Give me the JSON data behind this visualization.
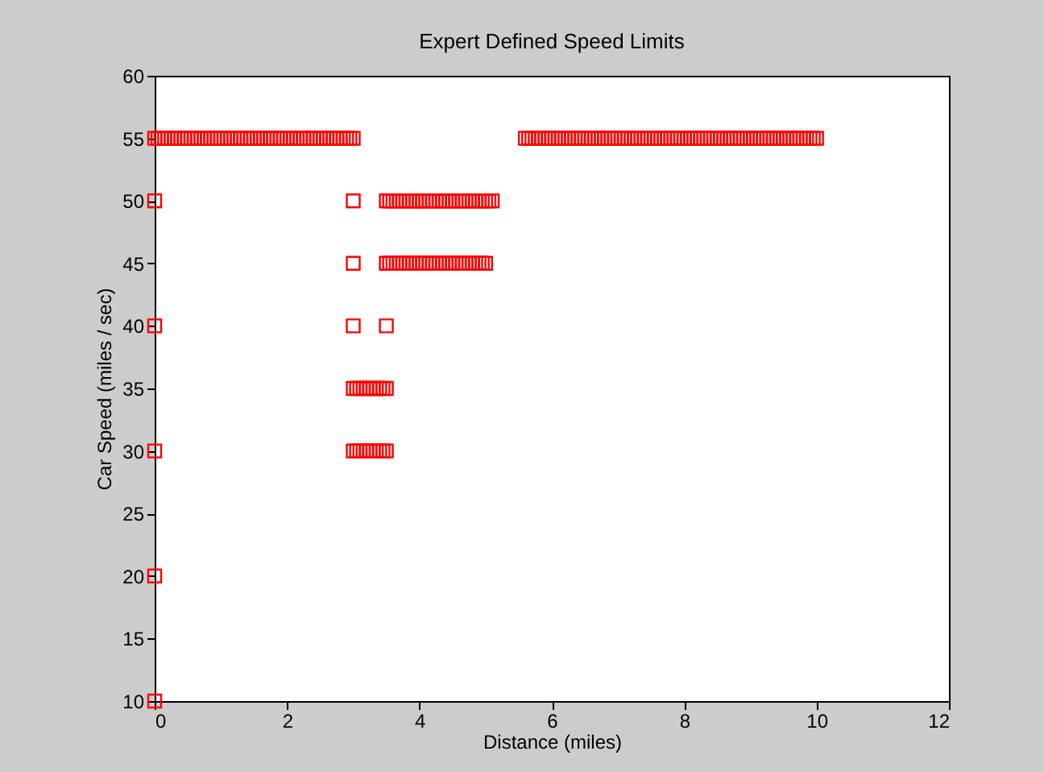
{
  "chart_data": {
    "type": "scatter",
    "title": "Expert Defined Speed Limits",
    "xlabel": "Distance (miles)",
    "ylabel": "Car Speed (miles / sec)",
    "xlim": [
      0,
      12
    ],
    "xticks": [
      0,
      2,
      4,
      6,
      8,
      10,
      12
    ],
    "ylim": [
      10,
      60
    ],
    "yticks": [
      10,
      15,
      20,
      25,
      30,
      35,
      40,
      45,
      50,
      55,
      60
    ],
    "grid": false,
    "legend": false,
    "marker": "square",
    "series": [
      {
        "color": "#ff0000",
        "x": [
          0,
          0.05,
          0.1,
          0.15,
          0.2,
          0.25,
          0.3,
          0.35,
          0.4,
          0.45,
          0.5,
          0.55,
          0.6,
          0.65,
          0.7,
          0.75,
          0.8,
          0.85,
          0.9,
          0.95,
          1,
          1.05,
          1.1,
          1.15,
          1.2,
          1.25,
          1.3,
          1.35,
          1.4,
          1.45,
          1.5,
          1.55,
          1.6,
          1.65,
          1.7,
          1.75,
          1.8,
          1.85,
          1.9,
          1.95,
          2,
          2.05,
          2.1,
          2.15,
          2.2,
          2.25,
          2.3,
          2.35,
          2.4,
          2.45,
          2.5,
          2.55,
          2.6,
          2.65,
          2.7,
          2.75,
          2.8,
          2.85,
          2.9,
          2.95,
          3,
          5.6,
          5.65,
          5.7,
          5.75,
          5.8,
          5.85,
          5.9,
          5.95,
          6,
          6.05,
          6.1,
          6.15,
          6.2,
          6.25,
          6.3,
          6.35,
          6.4,
          6.45,
          6.5,
          6.55,
          6.6,
          6.65,
          6.7,
          6.75,
          6.8,
          6.85,
          6.9,
          6.95,
          7,
          7.05,
          7.1,
          7.15,
          7.2,
          7.25,
          7.3,
          7.35,
          7.4,
          7.45,
          7.5,
          7.55,
          7.6,
          7.65,
          7.7,
          7.75,
          7.8,
          7.85,
          7.9,
          7.95,
          8,
          8.05,
          8.1,
          8.15,
          8.2,
          8.25,
          8.3,
          8.35,
          8.4,
          8.45,
          8.5,
          8.55,
          8.6,
          8.65,
          8.7,
          8.75,
          8.8,
          8.85,
          8.9,
          8.95,
          9,
          9.05,
          9.1,
          9.15,
          9.2,
          9.25,
          9.3,
          9.35,
          9.4,
          9.45,
          9.5,
          9.55,
          9.6,
          9.65,
          9.7,
          9.75,
          9.8,
          9.85,
          9.9,
          9.95,
          10,
          0,
          3,
          3.5,
          3.55,
          3.6,
          3.65,
          3.7,
          3.75,
          3.8,
          3.85,
          3.9,
          3.95,
          4,
          4.05,
          4.1,
          4.15,
          4.2,
          4.25,
          4.3,
          4.35,
          4.4,
          4.45,
          4.5,
          4.55,
          4.6,
          4.65,
          4.7,
          4.75,
          4.8,
          4.85,
          4.9,
          4.95,
          5,
          5.05,
          5.1,
          3,
          3.5,
          3.55,
          3.6,
          3.65,
          3.7,
          3.75,
          3.8,
          3.85,
          3.9,
          3.95,
          4,
          4.05,
          4.1,
          4.15,
          4.2,
          4.25,
          4.3,
          4.35,
          4.4,
          4.45,
          4.5,
          4.55,
          4.6,
          4.65,
          4.7,
          4.75,
          4.8,
          4.85,
          4.9,
          4.95,
          5,
          0,
          3,
          3.5,
          3,
          3.05,
          3.1,
          3.15,
          3.2,
          3.25,
          3.3,
          3.35,
          3.4,
          3.45,
          3.5,
          0,
          3,
          3.05,
          3.1,
          3.15,
          3.2,
          3.25,
          3.3,
          3.35,
          3.4,
          3.45,
          3.5,
          0,
          0
        ],
        "values": [
          55,
          55,
          55,
          55,
          55,
          55,
          55,
          55,
          55,
          55,
          55,
          55,
          55,
          55,
          55,
          55,
          55,
          55,
          55,
          55,
          55,
          55,
          55,
          55,
          55,
          55,
          55,
          55,
          55,
          55,
          55,
          55,
          55,
          55,
          55,
          55,
          55,
          55,
          55,
          55,
          55,
          55,
          55,
          55,
          55,
          55,
          55,
          55,
          55,
          55,
          55,
          55,
          55,
          55,
          55,
          55,
          55,
          55,
          55,
          55,
          55,
          55,
          55,
          55,
          55,
          55,
          55,
          55,
          55,
          55,
          55,
          55,
          55,
          55,
          55,
          55,
          55,
          55,
          55,
          55,
          55,
          55,
          55,
          55,
          55,
          55,
          55,
          55,
          55,
          55,
          55,
          55,
          55,
          55,
          55,
          55,
          55,
          55,
          55,
          55,
          55,
          55,
          55,
          55,
          55,
          55,
          55,
          55,
          55,
          55,
          55,
          55,
          55,
          55,
          55,
          55,
          55,
          55,
          55,
          55,
          55,
          55,
          55,
          55,
          55,
          55,
          55,
          55,
          55,
          55,
          55,
          55,
          55,
          55,
          55,
          55,
          55,
          55,
          55,
          55,
          55,
          55,
          55,
          55,
          55,
          55,
          55,
          55,
          55,
          55,
          50,
          50,
          50,
          50,
          50,
          50,
          50,
          50,
          50,
          50,
          50,
          50,
          50,
          50,
          50,
          50,
          50,
          50,
          50,
          50,
          50,
          50,
          50,
          50,
          50,
          50,
          50,
          50,
          50,
          50,
          50,
          50,
          50,
          50,
          50,
          45,
          45,
          45,
          45,
          45,
          45,
          45,
          45,
          45,
          45,
          45,
          45,
          45,
          45,
          45,
          45,
          45,
          45,
          45,
          45,
          45,
          45,
          45,
          45,
          45,
          45,
          45,
          45,
          45,
          45,
          45,
          45,
          40,
          40,
          40,
          35,
          35,
          35,
          35,
          35,
          35,
          35,
          35,
          35,
          35,
          35,
          30,
          30,
          30,
          30,
          30,
          30,
          30,
          30,
          30,
          30,
          30,
          30,
          20,
          10
        ]
      }
    ]
  }
}
